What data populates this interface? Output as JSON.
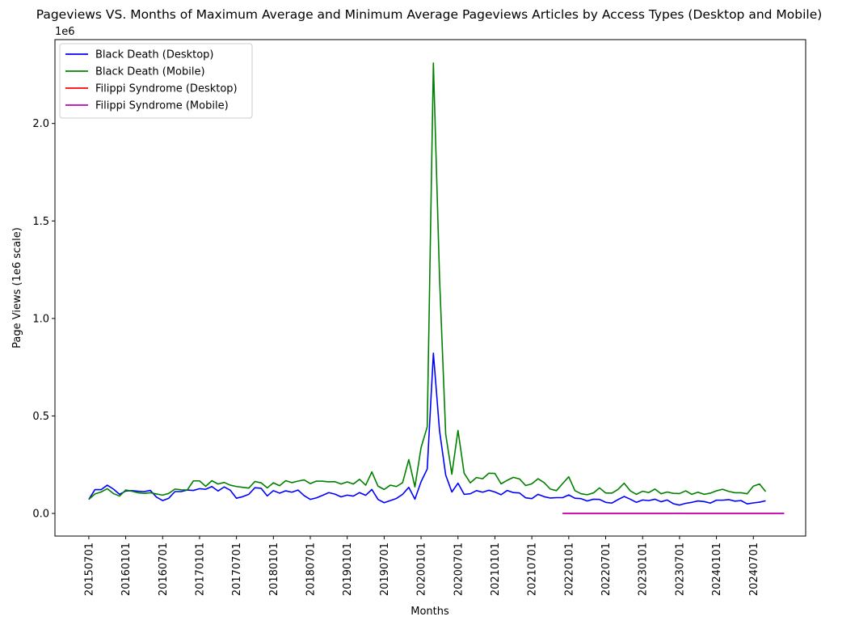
{
  "chart_data": {
    "type": "line",
    "title": "Pageviews VS. Months of Maximum Average and Minimum Average Pageviews Articles by Access Types (Desktop and Mobile)",
    "xlabel": "Months",
    "ylabel": "Page Views (1e6 scale)",
    "y_offset_label": "1e6",
    "x_ticks": [
      "20150701",
      "20160101",
      "20160701",
      "20170101",
      "20170701",
      "20180101",
      "20180701",
      "20190101",
      "20190701",
      "20200101",
      "20200701",
      "20210101",
      "20210701",
      "20220101",
      "20220701",
      "20230101",
      "20230701",
      "20240101",
      "20240701"
    ],
    "y_ticks": [
      0.0,
      0.5,
      1.0,
      1.5,
      2.0
    ],
    "y_tick_labels": [
      "0.0",
      "0.5",
      "1.0",
      "1.5",
      "2.0"
    ],
    "ylim": [
      -0.116,
      2.43
    ],
    "xlim": [
      -5.5,
      116.5
    ],
    "legend_position": "upper-left",
    "series": [
      {
        "name": "Black Death (Desktop)",
        "color": "#0000ff",
        "start_month": "201507",
        "values": [
          0.072,
          0.122,
          0.122,
          0.145,
          0.125,
          0.098,
          0.115,
          0.117,
          0.114,
          0.112,
          0.118,
          0.084,
          0.066,
          0.078,
          0.112,
          0.112,
          0.12,
          0.118,
          0.127,
          0.124,
          0.138,
          0.115,
          0.136,
          0.119,
          0.078,
          0.086,
          0.098,
          0.132,
          0.129,
          0.09,
          0.117,
          0.104,
          0.116,
          0.109,
          0.12,
          0.091,
          0.072,
          0.08,
          0.093,
          0.107,
          0.099,
          0.085,
          0.094,
          0.089,
          0.107,
          0.093,
          0.123,
          0.072,
          0.055,
          0.066,
          0.077,
          0.098,
          0.134,
          0.073,
          0.163,
          0.228,
          0.822,
          0.424,
          0.197,
          0.11,
          0.155,
          0.098,
          0.101,
          0.117,
          0.109,
          0.119,
          0.11,
          0.096,
          0.118,
          0.107,
          0.105,
          0.08,
          0.076,
          0.098,
          0.086,
          0.079,
          0.081,
          0.081,
          0.095,
          0.078,
          0.076,
          0.064,
          0.073,
          0.072,
          0.057,
          0.053,
          0.071,
          0.087,
          0.073,
          0.057,
          0.069,
          0.066,
          0.073,
          0.06,
          0.069,
          0.05,
          0.043,
          0.052,
          0.057,
          0.064,
          0.061,
          0.053,
          0.068,
          0.068,
          0.071,
          0.063,
          0.066,
          0.049,
          0.054,
          0.058,
          0.065
        ]
      },
      {
        "name": "Black Death (Mobile)",
        "color": "#008000",
        "start_month": "201507",
        "values": [
          0.072,
          0.1,
          0.11,
          0.127,
          0.102,
          0.089,
          0.12,
          0.114,
          0.106,
          0.103,
          0.106,
          0.1,
          0.094,
          0.103,
          0.125,
          0.121,
          0.12,
          0.167,
          0.167,
          0.139,
          0.168,
          0.151,
          0.159,
          0.145,
          0.138,
          0.134,
          0.13,
          0.164,
          0.157,
          0.131,
          0.157,
          0.142,
          0.168,
          0.158,
          0.166,
          0.172,
          0.153,
          0.166,
          0.165,
          0.162,
          0.163,
          0.151,
          0.162,
          0.151,
          0.175,
          0.145,
          0.213,
          0.14,
          0.123,
          0.145,
          0.138,
          0.158,
          0.276,
          0.136,
          0.338,
          0.444,
          2.31,
          1.21,
          0.407,
          0.201,
          0.426,
          0.206,
          0.157,
          0.184,
          0.178,
          0.206,
          0.205,
          0.152,
          0.17,
          0.185,
          0.177,
          0.143,
          0.152,
          0.178,
          0.158,
          0.125,
          0.117,
          0.153,
          0.188,
          0.117,
          0.101,
          0.096,
          0.105,
          0.131,
          0.105,
          0.104,
          0.123,
          0.155,
          0.116,
          0.098,
          0.114,
          0.107,
          0.125,
          0.101,
          0.11,
          0.103,
          0.102,
          0.116,
          0.098,
          0.109,
          0.098,
          0.104,
          0.116,
          0.124,
          0.113,
          0.106,
          0.106,
          0.101,
          0.14,
          0.151,
          0.112
        ]
      },
      {
        "name": "Filippi Syndrome (Desktop)",
        "color": "#ff0000",
        "start_month": "202112",
        "values": [
          0.0005,
          0.0004,
          0.0005,
          0.0004,
          0.0005,
          0.0005,
          0.0004,
          0.0005,
          0.0005,
          0.0004,
          0.0005,
          0.0005,
          0.0004,
          0.0005,
          0.0004,
          0.0005,
          0.0005,
          0.0004,
          0.0005,
          0.0005,
          0.0004,
          0.0005,
          0.0005,
          0.0004,
          0.0005,
          0.0005,
          0.0004,
          0.0005,
          0.0005,
          0.0004,
          0.0005,
          0.0004,
          0.0005,
          0.0005,
          0.0004,
          0.0005,
          0.0005
        ]
      },
      {
        "name": "Filippi Syndrome (Mobile)",
        "color": "#bf00bf",
        "start_month": "202112",
        "values": [
          0.0003,
          0.0004,
          0.0003,
          0.0003,
          0.0004,
          0.0003,
          0.0003,
          0.0004,
          0.0003,
          0.0003,
          0.0004,
          0.0003,
          0.0003,
          0.0004,
          0.0003,
          0.0003,
          0.0004,
          0.0003,
          0.0003,
          0.0004,
          0.0003,
          0.0003,
          0.0004,
          0.0003,
          0.0003,
          0.0004,
          0.0003,
          0.0003,
          0.0004,
          0.0003,
          0.0003,
          0.0004,
          0.0003,
          0.0003,
          0.0004,
          0.0003,
          0.0003
        ]
      }
    ]
  }
}
